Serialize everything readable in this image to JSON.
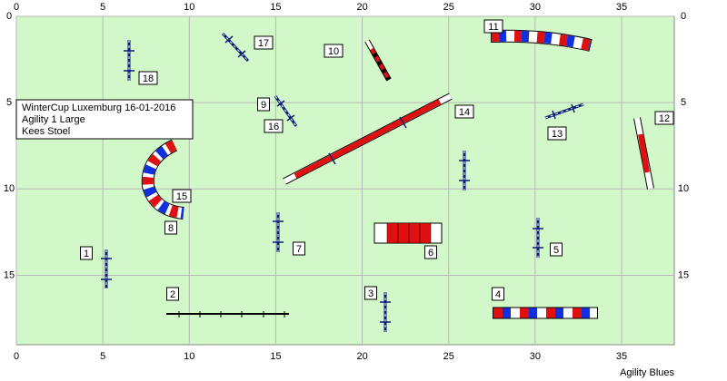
{
  "header": {
    "lines": [
      "WinterCup Luxemburg 16-01-2016",
      "Agility 1 Large",
      "Kees Stoel"
    ]
  },
  "axes": {
    "x_ticks": [
      0,
      5,
      10,
      15,
      20,
      25,
      30,
      35
    ],
    "y_ticks": [
      0,
      5,
      10,
      15
    ]
  },
  "obstacles": [
    1,
    2,
    3,
    4,
    5,
    6,
    7,
    8,
    9,
    10,
    11,
    12,
    13,
    14,
    15,
    16,
    17,
    18
  ],
  "footer": "Agility Blues"
}
